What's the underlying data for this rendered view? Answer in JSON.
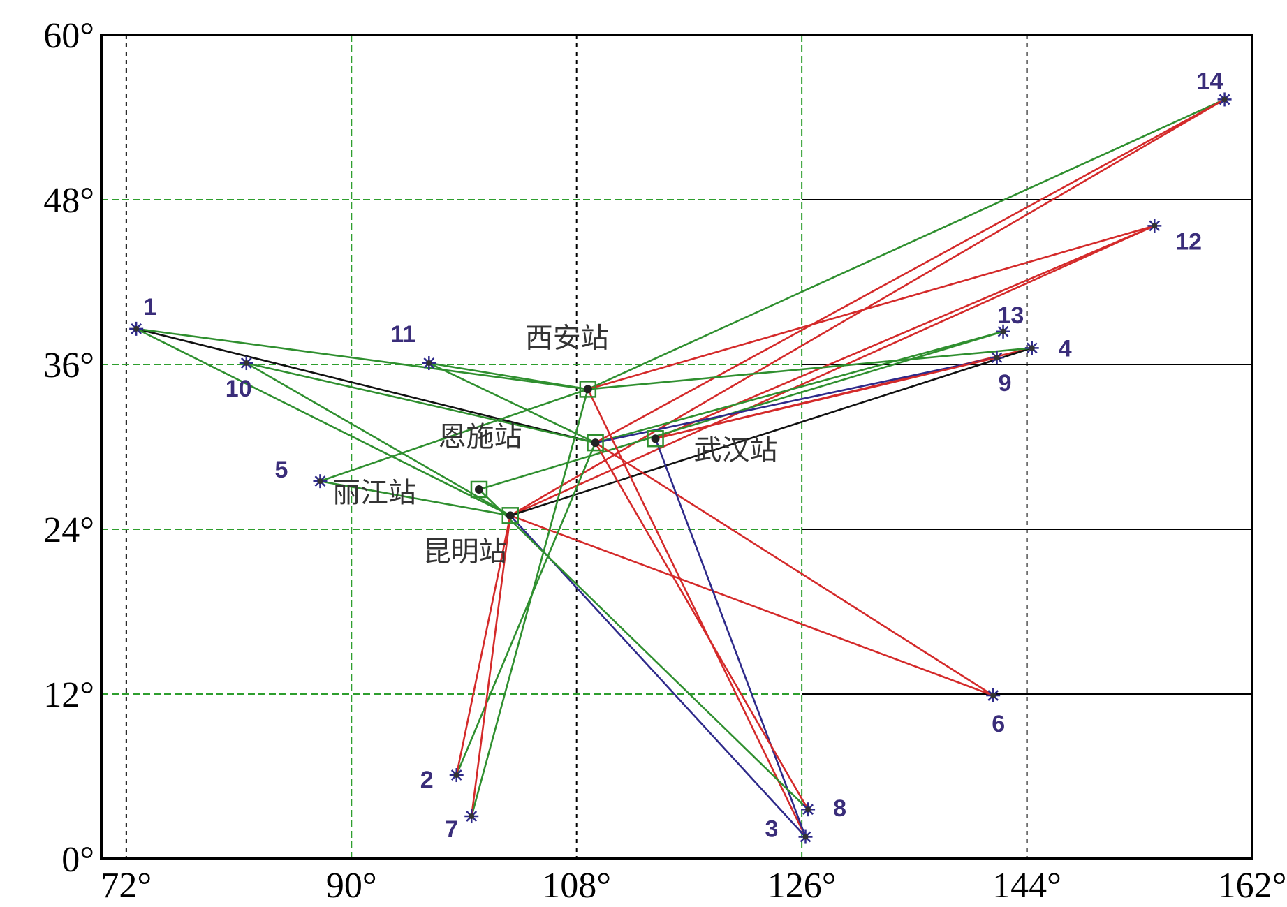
{
  "map": {
    "lon_range": [
      70,
      162
    ],
    "lat_range": [
      0,
      60
    ],
    "x_ticks": [
      {
        "value": 72,
        "label": "72°"
      },
      {
        "value": 90,
        "label": "90°"
      },
      {
        "value": 108,
        "label": "108°"
      },
      {
        "value": 126,
        "label": "126°"
      },
      {
        "value": 144,
        "label": "144°"
      },
      {
        "value": 162,
        "label": "162°"
      }
    ],
    "y_ticks": [
      {
        "value": 60,
        "label": "60°"
      },
      {
        "value": 48,
        "label": "48°"
      },
      {
        "value": 36,
        "label": "36°"
      },
      {
        "value": 24,
        "label": "24°"
      },
      {
        "value": 12,
        "label": "12°"
      },
      {
        "value": 0,
        "label": "0°"
      }
    ],
    "colors": {
      "path_red": "#d42a2a",
      "path_green": "#2f8f2f",
      "path_blue": "#2e2a8a",
      "path_black": "#111111",
      "event_marker": "#2e2a8a",
      "event_label": "#3a2d7a",
      "station_label": "#333333",
      "grid_black": "#000000",
      "grid_green": "#2e9e2e"
    }
  },
  "stations": [
    {
      "id": "xian",
      "label": "西安站",
      "lon": 108.9,
      "lat": 34.2
    },
    {
      "id": "enshi",
      "label": "恩施站",
      "lon": 109.5,
      "lat": 30.3
    },
    {
      "id": "wuhan",
      "label": "武汉站",
      "lon": 114.3,
      "lat": 30.6
    },
    {
      "id": "lijiang",
      "label": "丽江站",
      "lon": 100.2,
      "lat": 26.9
    },
    {
      "id": "kunming",
      "label": "昆明站",
      "lon": 102.7,
      "lat": 25.0
    }
  ],
  "events": [
    {
      "id": "1",
      "label": "1",
      "lon": 72.8,
      "lat": 38.6
    },
    {
      "id": "2",
      "label": "2",
      "lon": 98.4,
      "lat": 6.1
    },
    {
      "id": "3",
      "label": "3",
      "lon": 126.3,
      "lat": 1.6
    },
    {
      "id": "4",
      "label": "4",
      "lon": 144.4,
      "lat": 37.2
    },
    {
      "id": "5",
      "label": "5",
      "lon": 87.5,
      "lat": 27.5
    },
    {
      "id": "6",
      "label": "6",
      "lon": 141.3,
      "lat": 11.9
    },
    {
      "id": "7",
      "label": "7",
      "lon": 99.6,
      "lat": 3.1
    },
    {
      "id": "8",
      "label": "8",
      "lon": 126.5,
      "lat": 3.6
    },
    {
      "id": "9",
      "label": "9",
      "lon": 141.6,
      "lat": 36.5
    },
    {
      "id": "10",
      "label": "10",
      "lon": 81.6,
      "lat": 36.1
    },
    {
      "id": "11",
      "label": "11",
      "lon": 96.2,
      "lat": 36.1
    },
    {
      "id": "12",
      "label": "12",
      "lon": 154.2,
      "lat": 46.1
    },
    {
      "id": "13",
      "label": "13",
      "lon": 142.1,
      "lat": 38.4
    },
    {
      "id": "14",
      "label": "14",
      "lon": 159.8,
      "lat": 55.3
    }
  ],
  "paths": [
    {
      "from": "1",
      "to": "enshi",
      "color": "black"
    },
    {
      "from": "1",
      "to": "kunming",
      "color": "green"
    },
    {
      "from": "1",
      "to": "xian",
      "color": "green"
    },
    {
      "from": "10",
      "to": "kunming",
      "color": "green"
    },
    {
      "from": "10",
      "to": "enshi",
      "color": "green"
    },
    {
      "from": "11",
      "to": "xian",
      "color": "green"
    },
    {
      "from": "11",
      "to": "enshi",
      "color": "green"
    },
    {
      "from": "5",
      "to": "xian",
      "color": "green"
    },
    {
      "from": "5",
      "to": "kunming",
      "color": "green"
    },
    {
      "from": "14",
      "to": "kunming",
      "color": "red"
    },
    {
      "from": "14",
      "to": "xian",
      "color": "green"
    },
    {
      "from": "14",
      "to": "enshi",
      "color": "red"
    },
    {
      "from": "12",
      "to": "wuhan",
      "color": "red"
    },
    {
      "from": "12",
      "to": "kunming",
      "color": "red"
    },
    {
      "from": "12",
      "to": "xian",
      "color": "red"
    },
    {
      "from": "13",
      "to": "enshi",
      "color": "green"
    },
    {
      "from": "13",
      "to": "lijiang",
      "color": "green"
    },
    {
      "from": "4",
      "to": "wuhan",
      "color": "red"
    },
    {
      "from": "4",
      "to": "kunming",
      "color": "black"
    },
    {
      "from": "4",
      "to": "xian",
      "color": "green"
    },
    {
      "from": "9",
      "to": "enshi",
      "color": "blue"
    },
    {
      "from": "9",
      "to": "wuhan",
      "color": "red"
    },
    {
      "from": "6",
      "to": "kunming",
      "color": "red"
    },
    {
      "from": "6",
      "to": "enshi",
      "color": "red"
    },
    {
      "from": "3",
      "to": "kunming",
      "color": "blue"
    },
    {
      "from": "3",
      "to": "xian",
      "color": "red"
    },
    {
      "from": "3",
      "to": "wuhan",
      "color": "blue"
    },
    {
      "from": "8",
      "to": "enshi",
      "color": "red"
    },
    {
      "from": "8",
      "to": "lijiang",
      "color": "green"
    },
    {
      "from": "2",
      "to": "enshi",
      "color": "green"
    },
    {
      "from": "2",
      "to": "kunming",
      "color": "red"
    },
    {
      "from": "7",
      "to": "xian",
      "color": "green"
    },
    {
      "from": "7",
      "to": "kunming",
      "color": "red"
    }
  ]
}
